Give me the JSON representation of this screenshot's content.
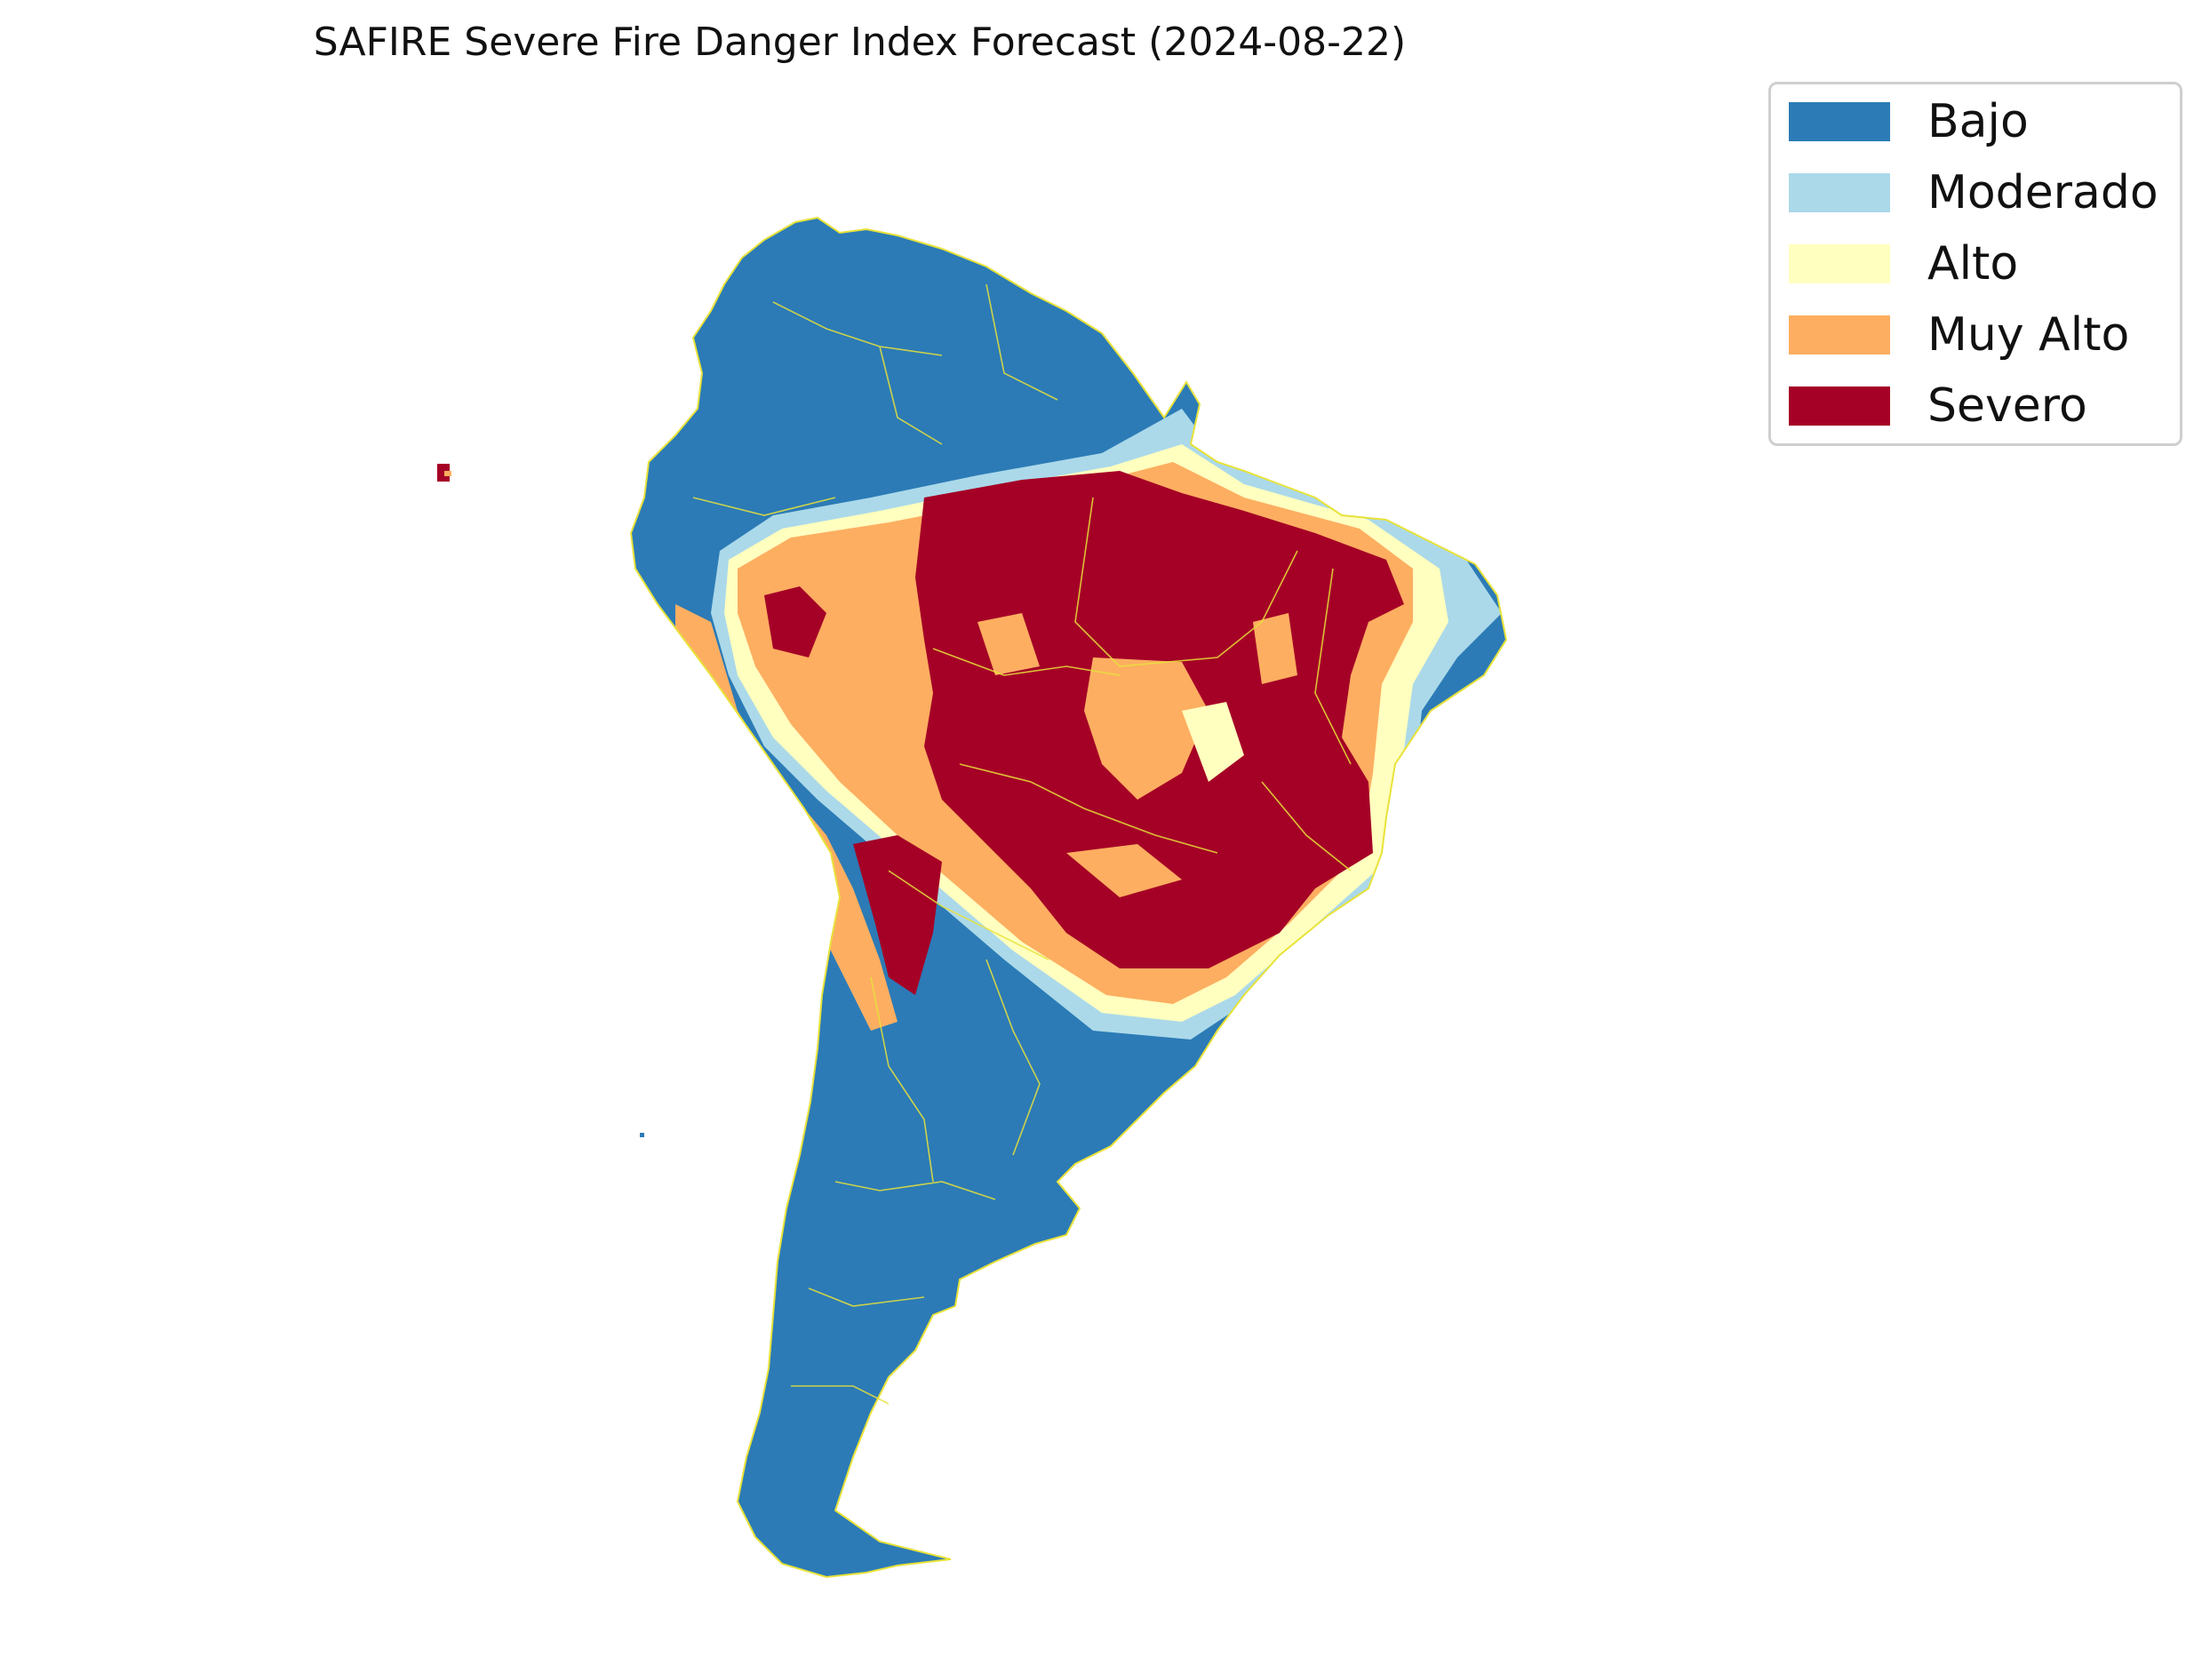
{
  "title": "SAFIRE Severe Fire Danger Index Forecast (2024-08-22)",
  "legend": {
    "items": [
      {
        "label": "Bajo",
        "color": "#2c7bb6"
      },
      {
        "label": "Moderado",
        "color": "#abd9e9"
      },
      {
        "label": "Alto",
        "color": "#ffffbf"
      },
      {
        "label": "Muy Alto",
        "color": "#fdae61"
      },
      {
        "label": "Severo",
        "color": "#a50026"
      }
    ]
  },
  "colors": {
    "border": "#e8e23a",
    "background": "#ffffff"
  }
}
